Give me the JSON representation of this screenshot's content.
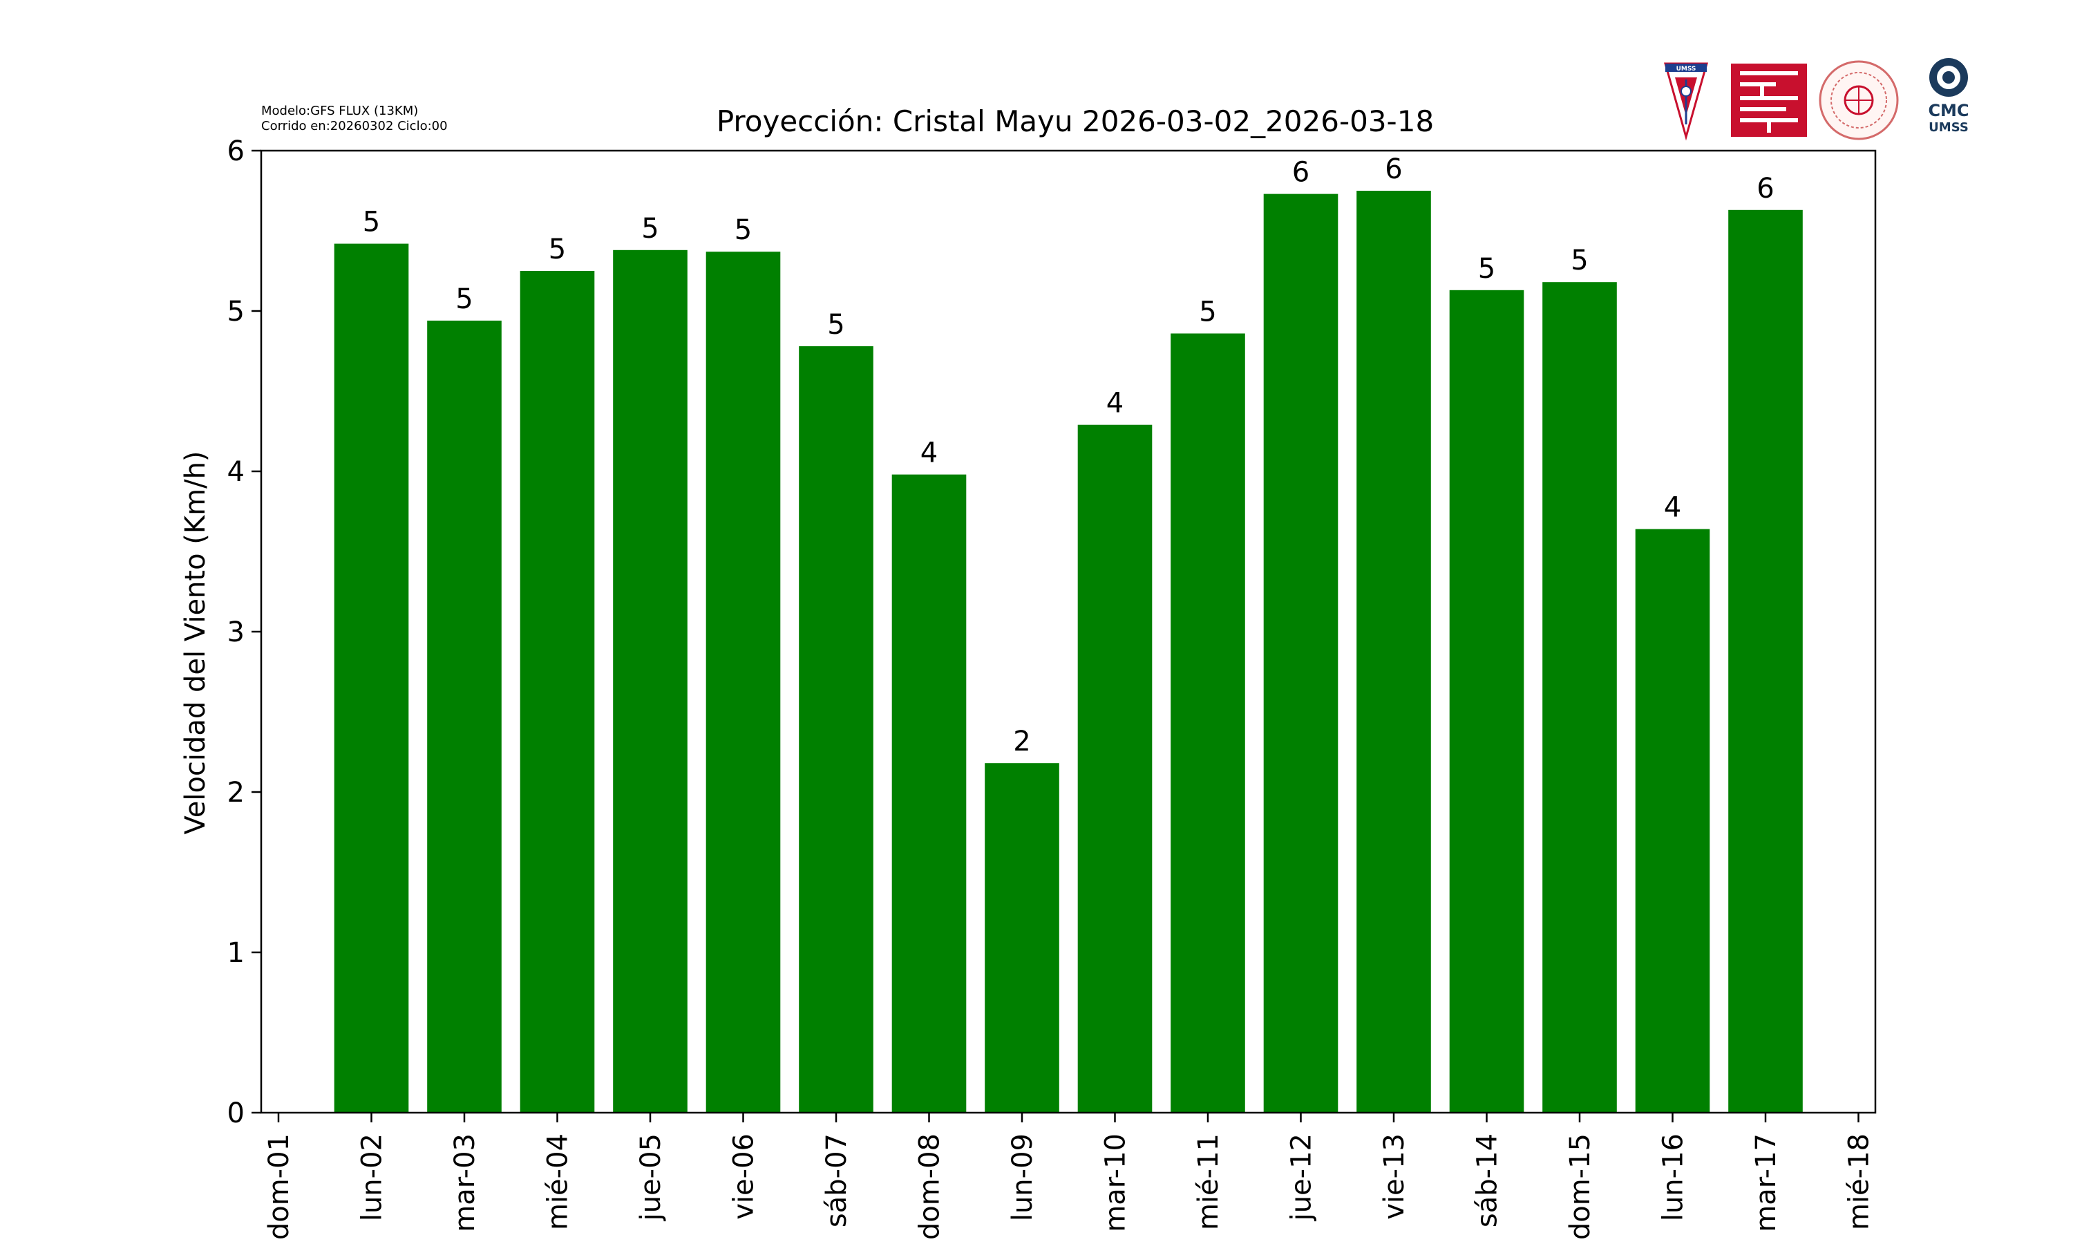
{
  "header": {
    "model_line": "Modelo:GFS FLUX (13KM)",
    "run_line": "Corrido en:20260302 Ciclo:00"
  },
  "logos": {
    "umss_label": "UMSS",
    "cmc_label": "CMC",
    "cmc_sub_label": "UMSS"
  },
  "chart_data": {
    "type": "bar",
    "title": "Proyección: Cristal Mayu  2026-03-02_2026-03-18",
    "xlabel": "",
    "ylabel": "Velocidad del Viento (Km/h)",
    "ylim": [
      0,
      6
    ],
    "yticks": [
      0,
      1,
      2,
      3,
      4,
      5,
      6
    ],
    "xticks": [
      "dom-01",
      "lun-02",
      "mar-03",
      "mié-04",
      "jue-05",
      "vie-06",
      "sáb-07",
      "dom-08",
      "lun-09",
      "mar-10",
      "mié-11",
      "jue-12",
      "vie-13",
      "sáb-14",
      "dom-15",
      "lun-16",
      "mar-17",
      "mié-18"
    ],
    "categories": [
      "lun-02",
      "mar-03",
      "mié-04",
      "jue-05",
      "vie-06",
      "sáb-07",
      "dom-08",
      "lun-09",
      "mar-10",
      "mié-11",
      "jue-12",
      "vie-13",
      "sáb-14",
      "dom-15",
      "lun-16",
      "mar-17"
    ],
    "values": [
      5.42,
      4.94,
      5.25,
      5.38,
      5.37,
      4.78,
      3.98,
      2.18,
      4.29,
      4.86,
      5.73,
      5.75,
      5.13,
      5.18,
      3.64,
      5.63
    ],
    "data_labels": [
      "5",
      "5",
      "5",
      "5",
      "5",
      "5",
      "4",
      "2",
      "4",
      "5",
      "6",
      "6",
      "5",
      "5",
      "4",
      "6"
    ],
    "bar_color": "#008000",
    "grid": false,
    "legend": "none"
  }
}
